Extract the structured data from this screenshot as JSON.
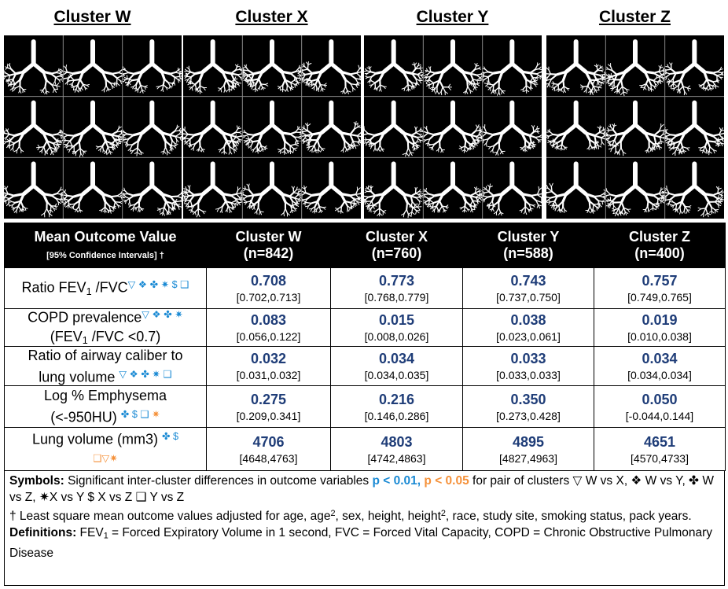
{
  "titles": [
    "Cluster W",
    "Cluster X",
    "Cluster Y",
    "Cluster Z"
  ],
  "table": {
    "header": {
      "label": [
        [
          {
            "text": "Mean Outcome Value",
            "bold": true
          }
        ],
        [
          {
            "text": "[95% Confidence Intervals] †",
            "bold": true,
            "small": true
          }
        ]
      ],
      "columns": [
        {
          "name": "Cluster W",
          "n": "(n=842)"
        },
        {
          "name": "Cluster X",
          "n": "(n=760)"
        },
        {
          "name": "Cluster Y",
          "n": "(n=588)"
        },
        {
          "name": "Cluster Z",
          "n": "(n=400)"
        }
      ]
    },
    "rows": [
      {
        "label": [
          [
            {
              "text": "Ratio FEV"
            },
            {
              "text": "1",
              "sub": true
            },
            {
              "text": " /FVC"
            },
            {
              "text": "▽ ❖ ✤ ✷ $ ❑",
              "sup": true,
              "color": "#1a8ad4"
            }
          ]
        ],
        "cells": [
          {
            "value": "0.708",
            "ci": "[0.702,0.713]"
          },
          {
            "value": "0.773",
            "ci": "[0.768,0.779]"
          },
          {
            "value": "0.743",
            "ci": "[0.737,0.750]"
          },
          {
            "value": "0.757",
            "ci": "[0.749,0.765]"
          }
        ]
      },
      {
        "label": [
          [
            {
              "text": "COPD prevalence"
            },
            {
              "text": "▽ ❖ ✤ ✷",
              "sup": true,
              "color": "#1a8ad4"
            }
          ],
          [
            {
              "text": "(FEV"
            },
            {
              "text": "1",
              "sub": true
            },
            {
              "text": " /FVC <0.7)"
            }
          ]
        ],
        "cells": [
          {
            "value": "0.083",
            "ci": "[0.056,0.122]"
          },
          {
            "value": "0.015",
            "ci": "[0.008,0.026]"
          },
          {
            "value": "0.038",
            "ci": "[0.023,0.061]"
          },
          {
            "value": "0.019",
            "ci": "[0.010,0.038]"
          }
        ]
      },
      {
        "label": [
          [
            {
              "text": "Ratio of airway caliber to"
            }
          ],
          [
            {
              "text": "lung volume "
            },
            {
              "text": "▽ ❖ ✤ ✷ ❑",
              "sup": true,
              "color": "#1a8ad4"
            }
          ]
        ],
        "cells": [
          {
            "value": "0.032",
            "ci": "[0.031,0.032]"
          },
          {
            "value": "0.034",
            "ci": "[0.034,0.035]"
          },
          {
            "value": "0.033",
            "ci": "[0.033,0.033]"
          },
          {
            "value": "0.034",
            "ci": "[0.034,0.034]"
          }
        ]
      },
      {
        "label": [
          [
            {
              "text": "Log % Emphysema"
            }
          ],
          [
            {
              "text": "(<-950HU) "
            },
            {
              "text": "✤ $ ❑",
              "sup": true,
              "color": "#1a8ad4"
            },
            {
              "text": " ✷",
              "sup": true,
              "color": "#f5913a"
            }
          ]
        ],
        "cells": [
          {
            "value": "0.275",
            "ci": "[0.209,0.341]"
          },
          {
            "value": "0.216",
            "ci": "[0.146,0.286]"
          },
          {
            "value": "0.350",
            "ci": "[0.273,0.428]"
          },
          {
            "value": "0.050",
            "ci": "[-0.044,0.144]"
          }
        ]
      },
      {
        "label": [
          [
            {
              "text": "Lung volume (mm3) "
            },
            {
              "text": "✤ $",
              "sup": true,
              "color": "#1a8ad4"
            }
          ],
          [
            {
              "text": "❑▽✷",
              "sup": true,
              "color": "#f5913a"
            }
          ]
        ],
        "cells": [
          {
            "value": "4706",
            "ci": "[4648,4763]"
          },
          {
            "value": "4803",
            "ci": "[4742,4863]"
          },
          {
            "value": "4895",
            "ci": "[4827,4963]"
          },
          {
            "value": "4651",
            "ci": "[4570,4733]"
          }
        ]
      }
    ]
  },
  "notes": [
    [
      {
        "text": "Symbols:",
        "bold": true
      },
      {
        "text": " Significant inter-cluster differences in outcome variables "
      },
      {
        "text": "p < 0.01",
        "bold": true,
        "color": "#1a8ad4"
      },
      {
        "text": ",",
        "bold": true,
        "color": "#1a8ad4"
      },
      {
        "text": " p < 0.05",
        "bold": true,
        "color": "#f5913a"
      },
      {
        "text": " for pair of clusters ▽ W vs X,  ❖ W vs Y, ✤ W vs Z,  ✷X vs Y $ X vs Z  ❑ Y vs Z"
      }
    ],
    [
      {
        "text": " † Least square mean outcome values adjusted for age, age"
      },
      {
        "text": "2",
        "sup": true
      },
      {
        "text": ", sex, height, height"
      },
      {
        "text": "2",
        "sup": true
      },
      {
        "text": ", race, study site, smoking status, pack years."
      }
    ],
    [
      {
        "text": "Definitions:",
        "bold": true
      },
      {
        "text": " FEV"
      },
      {
        "text": "1",
        "sub": true
      },
      {
        "text": " = Forced Expiratory Volume  in 1 second, FVC = Forced Vital Capacity,  COPD = Chronic Obstructive Pulmonary Disease"
      }
    ]
  ]
}
